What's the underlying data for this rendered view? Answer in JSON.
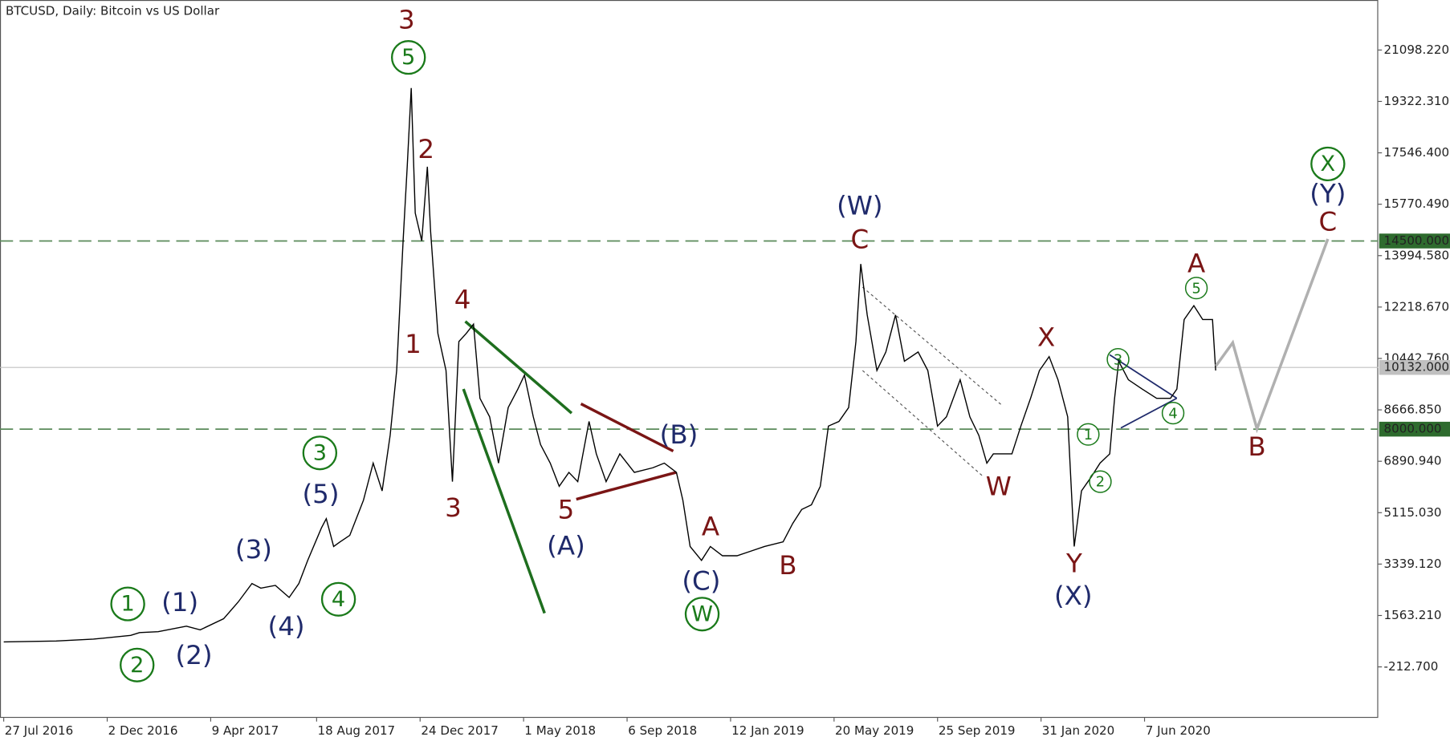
{
  "chart_data": {
    "type": "line",
    "title": "BTCUSD, Daily:  Bitcoin vs US Dollar",
    "color": "#000000",
    "x": [
      0,
      65,
      111,
      157,
      168,
      191,
      226,
      243,
      272,
      290,
      307,
      318,
      336,
      353,
      365,
      376,
      393,
      399,
      408,
      416,
      428,
      445,
      457,
      468,
      478,
      486,
      494,
      499,
      504,
      509,
      517,
      524,
      528,
      537,
      547,
      555,
      563,
      572,
      581,
      589,
      601,
      612,
      624,
      636,
      644,
      655,
      664,
      676,
      687,
      699,
      710,
      724,
      733,
      745,
      762,
      780,
      803,
      817,
      832,
      840,
      849,
      863,
      874,
      889,
      907,
      924,
      941,
      964,
      976,
      987,
      999,
      1010,
      1020,
      1033,
      1045,
      1054,
      1060,
      1068,
      1080,
      1091,
      1103,
      1114,
      1131,
      1143,
      1155,
      1166,
      1183,
      1195,
      1206,
      1216,
      1224,
      1235,
      1247,
      1258,
      1270,
      1281,
      1293,
      1304,
      1316,
      1324,
      1333,
      1345,
      1356,
      1368,
      1374,
      1379,
      1391,
      1408,
      1426,
      1443,
      1451,
      1460,
      1472,
      1483,
      1495,
      1499
    ],
    "values": [
      650,
      682,
      746,
      874,
      970,
      1002,
      1194,
      1066,
      1450,
      2026,
      2666,
      2506,
      2602,
      2186,
      2666,
      3466,
      4586,
      4906,
      3946,
      4106,
      4330,
      5546,
      6826,
      5866,
      7786,
      10026,
      14506,
      17066,
      19786,
      15466,
      14506,
      17066,
      14826,
      11306,
      10026,
      6186,
      11026,
      11306,
      11626,
      9066,
      8426,
      6826,
      8746,
      9386,
      9866,
      8426,
      7466,
      6826,
      6026,
      6506,
      6186,
      8266,
      7146,
      6186,
      7146,
      6506,
      6666,
      6826,
      6506,
      5546,
      3946,
      3466,
      3946,
      3626,
      3626,
      3786,
      3946,
      4106,
      4746,
      5226,
      5386,
      6026,
      8106,
      8266,
      8746,
      11026,
      13706,
      11946,
      10026,
      10666,
      11946,
      10346,
      10666,
      10026,
      8106,
      8426,
      9706,
      8426,
      7786,
      6826,
      7146,
      7146,
      7146,
      8106,
      9066,
      10026,
      10506,
      9706,
      8426,
      3946,
      5866,
      6346,
      6826,
      7146,
      9066,
      10346,
      9706,
      9386,
      9066,
      9066,
      9386,
      11786,
      12266,
      11786,
      11786,
      10026
    ],
    "xlim": [
      -4.6,
      1700
    ],
    "ylim": [
      -1973,
      22826
    ],
    "xticks": [
      {
        "value": 0,
        "label": "27 Jul 2016"
      },
      {
        "value": 128,
        "label": "2 Dec 2016"
      },
      {
        "value": 256,
        "label": "9 Apr 2017"
      },
      {
        "value": 387,
        "label": "18 Aug 2017"
      },
      {
        "value": 515,
        "label": "24 Dec 2017"
      },
      {
        "value": 643,
        "label": "1 May 2018"
      },
      {
        "value": 771,
        "label": "6 Sep 2018"
      },
      {
        "value": 899,
        "label": "12 Jan 2019"
      },
      {
        "value": 1027,
        "label": "20 May 2019"
      },
      {
        "value": 1155,
        "label": "25 Sep 2019"
      },
      {
        "value": 1283,
        "label": "31 Jan 2020"
      },
      {
        "value": 1411,
        "label": "7 Jun 2020"
      }
    ],
    "yticks": [
      {
        "value": 21098.22,
        "label": "21098.220"
      },
      {
        "value": 19322.31,
        "label": "19322.310"
      },
      {
        "value": 17546.4,
        "label": "17546.400"
      },
      {
        "value": 15770.49,
        "label": "15770.490"
      },
      {
        "value": 13994.58,
        "label": "13994.580"
      },
      {
        "value": 12218.67,
        "label": "12218.670"
      },
      {
        "value": 10442.76,
        "label": "10442.760"
      },
      {
        "value": 8666.85,
        "label": "8666.850"
      },
      {
        "value": 6890.94,
        "label": "6890.940"
      },
      {
        "value": 5115.03,
        "label": "5115.030"
      },
      {
        "value": 3339.12,
        "label": "3339.120"
      },
      {
        "value": 1563.21,
        "label": "1563.210"
      },
      {
        "value": -212.7,
        "label": "-212.700"
      }
    ],
    "levels": [
      {
        "value": 14500,
        "label": "14500.000",
        "color": "#2e6b2e"
      },
      {
        "value": 8000,
        "label": "8000.000",
        "color": "#2e6b2e"
      }
    ],
    "last_price": {
      "value": 10132,
      "label": "10132.000",
      "color": "#c0c0c0"
    },
    "annotations": [
      {
        "text": "3",
        "color": "#7a1515",
        "circled": false
      },
      {
        "text": "5",
        "color": "#1a7a1a",
        "circled": true
      },
      {
        "text": "2",
        "color": "#7a1515",
        "circled": false
      },
      {
        "text": "1",
        "color": "#7a1515",
        "circled": false
      },
      {
        "text": "4",
        "color": "#7a1515",
        "circled": false
      },
      {
        "text": "3",
        "color": "#7a1515",
        "circled": false
      },
      {
        "text": "5",
        "color": "#7a1515",
        "circled": false
      },
      {
        "text": "(A)",
        "color": "#1f2a6b",
        "circled": false
      },
      {
        "text": "(B)",
        "color": "#1f2a6b",
        "circled": false
      },
      {
        "text": "A",
        "color": "#7a1515",
        "circled": false
      },
      {
        "text": "B",
        "color": "#7a1515",
        "circled": false
      },
      {
        "text": "(C)",
        "color": "#1f2a6b",
        "circled": false
      },
      {
        "text": "W",
        "color": "#1a7a1a",
        "circled": true
      },
      {
        "text": "(W)",
        "color": "#1f2a6b",
        "circled": false
      },
      {
        "text": "C",
        "color": "#7a1515",
        "circled": false
      },
      {
        "text": "W",
        "color": "#7a1515",
        "circled": false
      },
      {
        "text": "X",
        "color": "#7a1515",
        "circled": false
      },
      {
        "text": "Y",
        "color": "#7a1515",
        "circled": false
      },
      {
        "text": "(X)",
        "color": "#1f2a6b",
        "circled": false
      },
      {
        "text": "1",
        "color": "#1a7a1a",
        "circled": true
      },
      {
        "text": "2",
        "color": "#1a7a1a",
        "circled": true
      },
      {
        "text": "3",
        "color": "#1a7a1a",
        "circled": true
      },
      {
        "text": "4",
        "color": "#1a7a1a",
        "circled": true
      },
      {
        "text": "5",
        "color": "#1a7a1a",
        "circled": true
      },
      {
        "text": "A",
        "color": "#7a1515",
        "circled": false
      },
      {
        "text": "B",
        "color": "#7a1515",
        "circled": false
      },
      {
        "text": "C",
        "color": "#7a1515",
        "circled": false
      },
      {
        "text": "(Y)",
        "color": "#1f2a6b",
        "circled": false
      },
      {
        "text": "X",
        "color": "#1a7a1a",
        "circled": true
      },
      {
        "text": "1",
        "color": "#1a7a1a",
        "circled": true
      },
      {
        "text": "2",
        "color": "#1a7a1a",
        "circled": true
      },
      {
        "text": "(1)",
        "color": "#1f2a6b",
        "circled": false
      },
      {
        "text": "(2)",
        "color": "#1f2a6b",
        "circled": false
      },
      {
        "text": "(3)",
        "color": "#1f2a6b",
        "circled": false
      },
      {
        "text": "(4)",
        "color": "#1f2a6b",
        "circled": false
      },
      {
        "text": "(5)",
        "color": "#1f2a6b",
        "circled": false
      },
      {
        "text": "3",
        "color": "#1a7a1a",
        "circled": true
      },
      {
        "text": "4",
        "color": "#1a7a1a",
        "circled": true
      }
    ]
  }
}
